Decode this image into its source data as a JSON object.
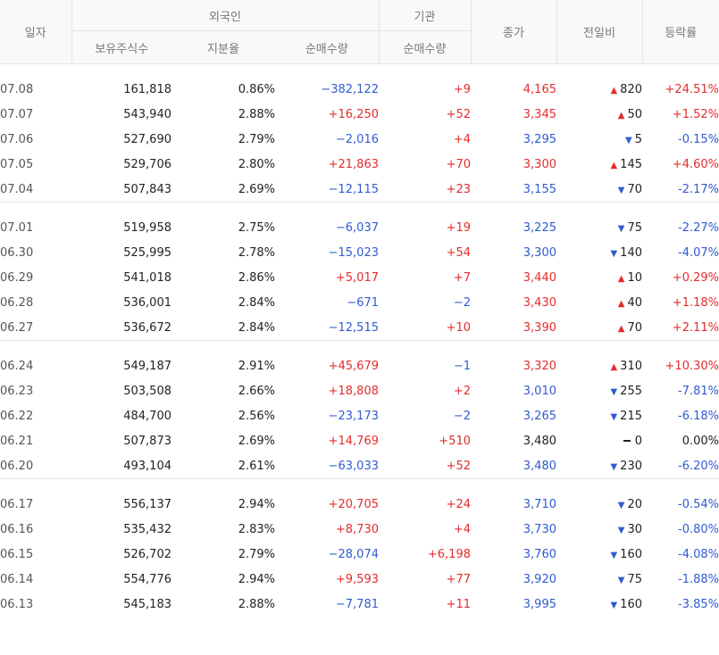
{
  "headers": {
    "date": "일자",
    "foreign": "외국인",
    "institution": "기관",
    "close": "종가",
    "change": "전일비",
    "rate": "등락률",
    "holding": "보유주식수",
    "share": "지분율",
    "foreign_net": "순매수량",
    "inst_net": "순매수량"
  },
  "colors": {
    "up": "#e52b2b",
    "down": "#2f5bd1",
    "flat": "#222222"
  },
  "groups": [
    [
      {
        "date": "07.08",
        "holding": "161,818",
        "share": "0.86%",
        "foreign_net": "−382,122",
        "inst_net": "+9",
        "close": "4,165",
        "dir": "up",
        "change": "820",
        "rate": "+24.51%"
      },
      {
        "date": "07.07",
        "holding": "543,940",
        "share": "2.88%",
        "foreign_net": "+16,250",
        "inst_net": "+52",
        "close": "3,345",
        "dir": "up",
        "change": "50",
        "rate": "+1.52%"
      },
      {
        "date": "07.06",
        "holding": "527,690",
        "share": "2.79%",
        "foreign_net": "−2,016",
        "inst_net": "+4",
        "close": "3,295",
        "dir": "down",
        "change": "5",
        "rate": "-0.15%"
      },
      {
        "date": "07.05",
        "holding": "529,706",
        "share": "2.80%",
        "foreign_net": "+21,863",
        "inst_net": "+70",
        "close": "3,300",
        "dir": "up",
        "change": "145",
        "rate": "+4.60%"
      },
      {
        "date": "07.04",
        "holding": "507,843",
        "share": "2.69%",
        "foreign_net": "−12,115",
        "inst_net": "+23",
        "close": "3,155",
        "dir": "down",
        "change": "70",
        "rate": "-2.17%"
      }
    ],
    [
      {
        "date": "07.01",
        "holding": "519,958",
        "share": "2.75%",
        "foreign_net": "−6,037",
        "inst_net": "+19",
        "close": "3,225",
        "dir": "down",
        "change": "75",
        "rate": "-2.27%"
      },
      {
        "date": "06.30",
        "holding": "525,995",
        "share": "2.78%",
        "foreign_net": "−15,023",
        "inst_net": "+54",
        "close": "3,300",
        "dir": "down",
        "change": "140",
        "rate": "-4.07%"
      },
      {
        "date": "06.29",
        "holding": "541,018",
        "share": "2.86%",
        "foreign_net": "+5,017",
        "inst_net": "+7",
        "close": "3,440",
        "dir": "up",
        "change": "10",
        "rate": "+0.29%"
      },
      {
        "date": "06.28",
        "holding": "536,001",
        "share": "2.84%",
        "foreign_net": "−671",
        "inst_net": "−2",
        "close": "3,430",
        "dir": "up",
        "change": "40",
        "rate": "+1.18%"
      },
      {
        "date": "06.27",
        "holding": "536,672",
        "share": "2.84%",
        "foreign_net": "−12,515",
        "inst_net": "+10",
        "close": "3,390",
        "dir": "up",
        "change": "70",
        "rate": "+2.11%"
      }
    ],
    [
      {
        "date": "06.24",
        "holding": "549,187",
        "share": "2.91%",
        "foreign_net": "+45,679",
        "inst_net": "−1",
        "close": "3,320",
        "dir": "up",
        "change": "310",
        "rate": "+10.30%"
      },
      {
        "date": "06.23",
        "holding": "503,508",
        "share": "2.66%",
        "foreign_net": "+18,808",
        "inst_net": "+2",
        "close": "3,010",
        "dir": "down",
        "change": "255",
        "rate": "-7.81%"
      },
      {
        "date": "06.22",
        "holding": "484,700",
        "share": "2.56%",
        "foreign_net": "−23,173",
        "inst_net": "−2",
        "close": "3,265",
        "dir": "down",
        "change": "215",
        "rate": "-6.18%"
      },
      {
        "date": "06.21",
        "holding": "507,873",
        "share": "2.69%",
        "foreign_net": "+14,769",
        "inst_net": "+510",
        "close": "3,480",
        "dir": "flat",
        "change": "0",
        "rate": "0.00%"
      },
      {
        "date": "06.20",
        "holding": "493,104",
        "share": "2.61%",
        "foreign_net": "−63,033",
        "inst_net": "+52",
        "close": "3,480",
        "dir": "down",
        "change": "230",
        "rate": "-6.20%"
      }
    ],
    [
      {
        "date": "06.17",
        "holding": "556,137",
        "share": "2.94%",
        "foreign_net": "+20,705",
        "inst_net": "+24",
        "close": "3,710",
        "dir": "down",
        "change": "20",
        "rate": "-0.54%"
      },
      {
        "date": "06.16",
        "holding": "535,432",
        "share": "2.83%",
        "foreign_net": "+8,730",
        "inst_net": "+4",
        "close": "3,730",
        "dir": "down",
        "change": "30",
        "rate": "-0.80%"
      },
      {
        "date": "06.15",
        "holding": "526,702",
        "share": "2.79%",
        "foreign_net": "−28,074",
        "inst_net": "+6,198",
        "close": "3,760",
        "dir": "down",
        "change": "160",
        "rate": "-4.08%"
      },
      {
        "date": "06.14",
        "holding": "554,776",
        "share": "2.94%",
        "foreign_net": "+9,593",
        "inst_net": "+77",
        "close": "3,920",
        "dir": "down",
        "change": "75",
        "rate": "-1.88%"
      },
      {
        "date": "06.13",
        "holding": "545,183",
        "share": "2.88%",
        "foreign_net": "−7,781",
        "inst_net": "+11",
        "close": "3,995",
        "dir": "down",
        "change": "160",
        "rate": "-3.85%"
      }
    ]
  ]
}
